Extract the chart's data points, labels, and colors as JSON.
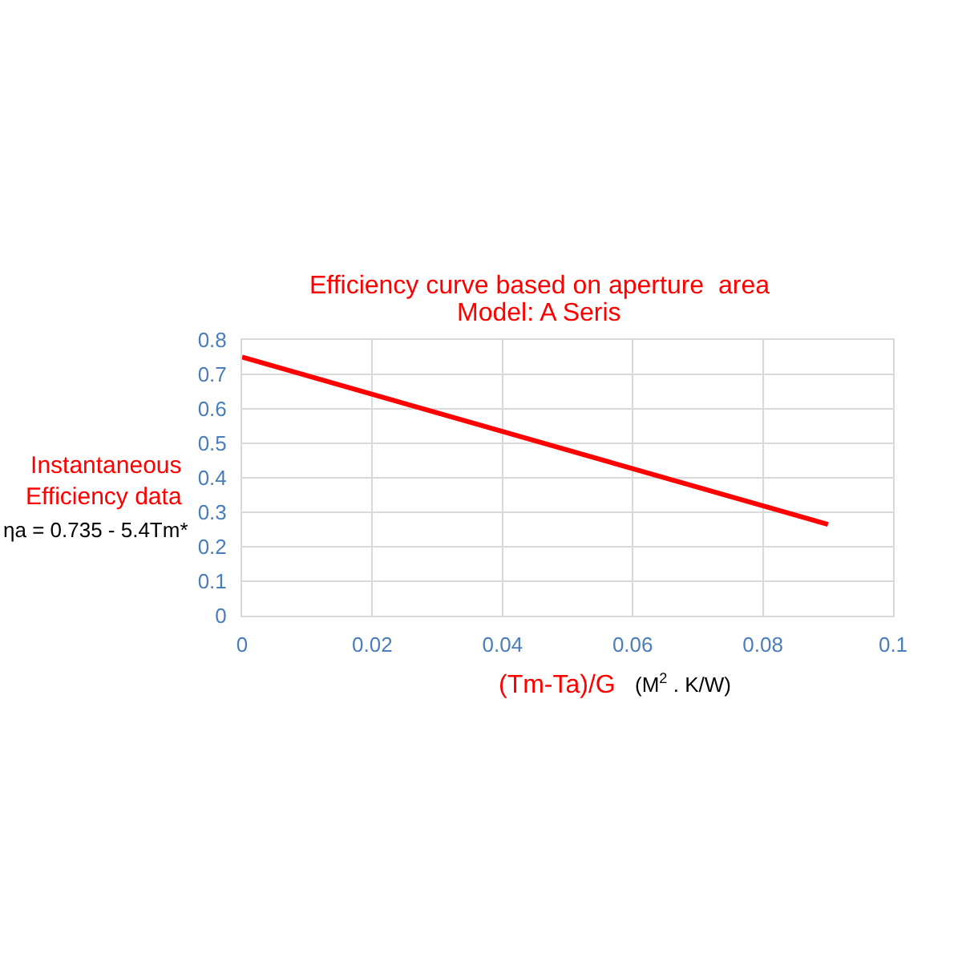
{
  "chart_data": {
    "type": "line",
    "title": "Efficiency curve based on aperture  area",
    "subtitle": "Model: A Seris",
    "xlabel": "(Tm-Ta)/G",
    "ylabel": "Instantaneous\nEfficiency data",
    "annotations": [
      "ηa = 0.735 - 5.4Tm*",
      "(M$^{2}$ . K/W)"
    ],
    "x": [
      0,
      0.09
    ],
    "series": [
      {
        "color": "#ff0000",
        "values": [
          0.75,
          0.265
        ]
      }
    ],
    "xlim": [
      0,
      0.1
    ],
    "xticks": [
      0,
      0.02,
      0.04,
      0.06,
      0.08,
      0.1
    ],
    "ylim": [
      0,
      0.8
    ],
    "yticks": [
      0,
      0.1,
      0.2,
      0.3,
      0.4,
      0.5,
      0.6,
      0.7,
      0.8
    ],
    "grid": true,
    "marker": "none",
    "line_style": "solid"
  }
}
